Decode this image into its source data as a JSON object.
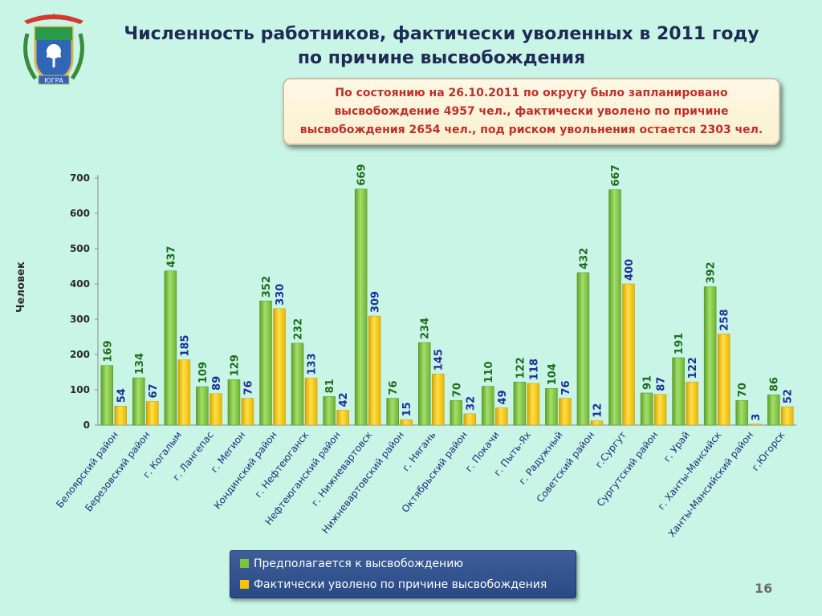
{
  "title": {
    "line1": "Численность работников, фактически уволенных в 2011 году",
    "line2": "по причине высвобождения"
  },
  "info": {
    "line1": "По состоянию на 26.10.2011 по округу было запланировано",
    "line2": "высвобождение  4957 чел., фактически уволено по причине",
    "line3": "высвобождения 2654 чел., под риском увольнения остается  2303 чел."
  },
  "emblem": {
    "icon": "yugra-coat-of-arms-icon",
    "text": "ЮГРА"
  },
  "page_number": "16",
  "colors": {
    "background": "#c9f5e6",
    "planned": "#7dc340",
    "dismissed": "#f5c400",
    "planned_label": "#1e6e1e",
    "dismissed_label": "#1f2f9a",
    "info_text": "#c0302a",
    "legend_bg": "#34548f"
  },
  "chart_data": {
    "type": "bar",
    "ylabel": "Человек",
    "ylim": [
      0,
      700
    ],
    "yticks": [
      0,
      100,
      200,
      300,
      400,
      500,
      600,
      700
    ],
    "grid": false,
    "legend_position": "bottom",
    "categories": [
      "Белоярский район",
      "Березовский район",
      "г. Когалым",
      "г. Лангепас",
      "г. Мегион",
      "Кондинский район",
      "г. Нефтеюганск",
      "Нефтеюганский район",
      "г. Нижневартовск",
      "Нижневартовский район",
      "г. Нягань",
      "Октябрьский район",
      "г. Покачи",
      "г. Пыть-Ях",
      "г. Радужный",
      "Советский район",
      "г.Сургут",
      "Сургутский район",
      "г. Урай",
      "г. Ханты-Мансийск",
      "Ханты-Мансийский район",
      "г.Югорск"
    ],
    "series": [
      {
        "name": "Предполагается к высвобождению",
        "values": [
          169,
          134,
          437,
          109,
          129,
          352,
          232,
          81,
          669,
          76,
          234,
          70,
          110,
          122,
          104,
          432,
          667,
          91,
          191,
          392,
          70,
          86
        ]
      },
      {
        "name": "Фактически уволено по причине высвобождения",
        "values": [
          54,
          67,
          185,
          89,
          76,
          330,
          133,
          42,
          309,
          15,
          145,
          32,
          49,
          118,
          76,
          12,
          400,
          87,
          122,
          258,
          3,
          52
        ]
      }
    ]
  }
}
